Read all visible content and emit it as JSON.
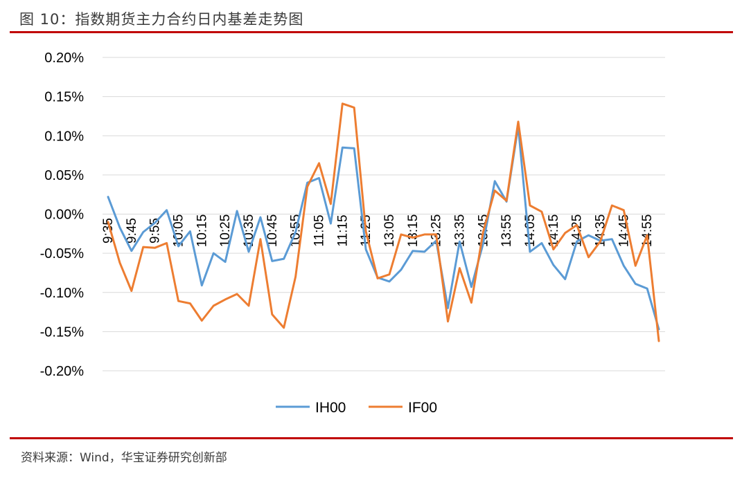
{
  "header": {
    "title": "图 10：指数期货主力合约日内基差走势图"
  },
  "footer": {
    "source": "资料来源：Wind，华宝证券研究创新部"
  },
  "colors": {
    "accent": "#c00000",
    "IH00": "#5b9bd5",
    "IF00": "#ed7d31",
    "grid": "#d9d9d9"
  },
  "chart_data": {
    "type": "line",
    "title": "",
    "xlabel": "",
    "ylabel": "",
    "ylim": [
      -0.2,
      0.2
    ],
    "yticks": [
      "0.20%",
      "0.15%",
      "0.10%",
      "0.05%",
      "0.00%",
      "-0.05%",
      "-0.10%",
      "-0.15%",
      "-0.20%"
    ],
    "ytick_values": [
      0.2,
      0.15,
      0.1,
      0.05,
      0.0,
      -0.05,
      -0.1,
      -0.15,
      -0.2
    ],
    "xtick_labels": [
      "9:35",
      "9:45",
      "9:55",
      "10:05",
      "10:15",
      "10:25",
      "10:35",
      "10:45",
      "10:55",
      "11:05",
      "11:15",
      "11:25",
      "13:05",
      "13:15",
      "13:25",
      "13:35",
      "13:45",
      "13:55",
      "14:05",
      "14:15",
      "14:25",
      "14:35",
      "14:45",
      "14:55"
    ],
    "xtick_every": 2,
    "grid": true,
    "legend": "bottom",
    "series": [
      {
        "name": "IH00",
        "color": "#5b9bd5",
        "values": [
          0.022,
          -0.017,
          -0.047,
          -0.023,
          -0.011,
          0.005,
          -0.041,
          -0.022,
          -0.091,
          -0.05,
          -0.061,
          0.004,
          -0.048,
          -0.004,
          -0.06,
          -0.057,
          -0.023,
          0.04,
          0.046,
          -0.012,
          0.085,
          0.084,
          -0.045,
          -0.081,
          -0.086,
          -0.071,
          -0.047,
          -0.048,
          -0.034,
          -0.12,
          -0.035,
          -0.093,
          -0.038,
          0.042,
          0.016,
          0.112,
          -0.048,
          -0.037,
          -0.065,
          -0.083,
          -0.035,
          -0.027,
          -0.034,
          -0.032,
          -0.066,
          -0.089,
          -0.095,
          -0.147
        ]
      },
      {
        "name": "IF00",
        "color": "#ed7d31",
        "values": [
          -0.01,
          -0.062,
          -0.098,
          -0.042,
          -0.043,
          -0.037,
          -0.111,
          -0.114,
          -0.136,
          -0.117,
          -0.109,
          -0.102,
          -0.117,
          -0.032,
          -0.128,
          -0.145,
          -0.08,
          0.035,
          0.065,
          0.013,
          0.141,
          0.136,
          -0.022,
          -0.082,
          -0.077,
          -0.026,
          -0.03,
          -0.026,
          -0.026,
          -0.137,
          -0.069,
          -0.113,
          -0.023,
          0.03,
          0.017,
          0.118,
          0.011,
          0.003,
          -0.045,
          -0.024,
          -0.014,
          -0.055,
          -0.035,
          0.011,
          0.005,
          -0.066,
          -0.027,
          -0.162
        ]
      }
    ]
  }
}
